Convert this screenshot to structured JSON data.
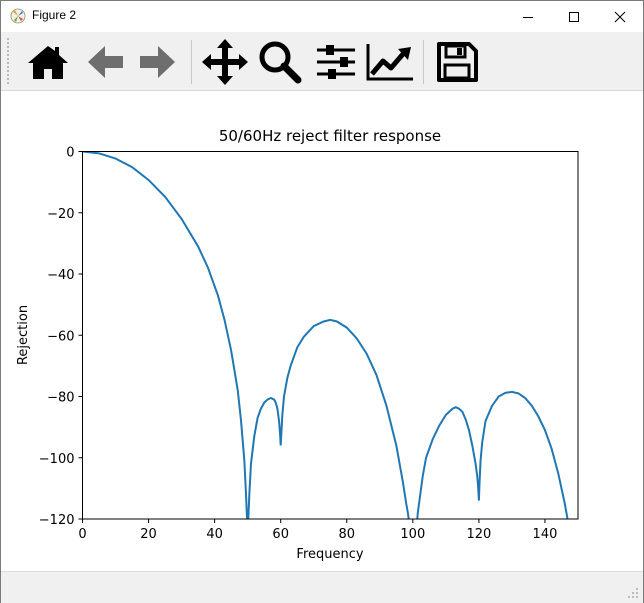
{
  "window": {
    "title": "Figure 2"
  },
  "toolbar": {
    "buttons": [
      "home-icon",
      "back-arrow-icon",
      "forward-arrow-icon",
      "pan-move-icon",
      "zoom-magnifier-icon",
      "configure-subplots-icon",
      "edit-axis-icon",
      "save-floppy-icon"
    ]
  },
  "chart_data": {
    "type": "line",
    "title": "50/60Hz reject filter response",
    "xlabel": "Frequency",
    "ylabel": "Rejection",
    "xlim": [
      0,
      150
    ],
    "ylim": [
      -120,
      0
    ],
    "xticks": [
      "0",
      "20",
      "40",
      "60",
      "80",
      "100",
      "120",
      "140"
    ],
    "yticks": [
      "0",
      "−20",
      "−40",
      "−60",
      "−80",
      "−100",
      "−120"
    ],
    "line_color": "#1f77b4",
    "grid": false,
    "series": [
      {
        "x": [
          0,
          5,
          10,
          15,
          20,
          25,
          30,
          35,
          38,
          41,
          43,
          45,
          47,
          48,
          49,
          49.5,
          50,
          50.5,
          51,
          52,
          53,
          54,
          55,
          56,
          57,
          58,
          58.5,
          59,
          59.5,
          59.8,
          60,
          60.2,
          60.5,
          61,
          62,
          63,
          65,
          67,
          70,
          73,
          75,
          77,
          80,
          83,
          86,
          89,
          92,
          95,
          97,
          98,
          98.5,
          99,
          101,
          101.5,
          102,
          103,
          104,
          106,
          108,
          110,
          112,
          113,
          114,
          115,
          116,
          117,
          118,
          119,
          119.5,
          119.8,
          120,
          120.2,
          120.5,
          121,
          122,
          124,
          126,
          128,
          130,
          132,
          134,
          136,
          138,
          140,
          142,
          144,
          145,
          146,
          147,
          147.5
        ],
        "y": [
          0,
          -0.6,
          -2.3,
          -5.1,
          -9.3,
          -14.8,
          -22,
          -31,
          -38,
          -47,
          -55,
          -65,
          -78,
          -88,
          -101,
          -112,
          -125,
          -112,
          -102,
          -93,
          -87,
          -84,
          -82,
          -81,
          -80.5,
          -81,
          -82,
          -84,
          -88,
          -92,
          -96,
          -92,
          -86,
          -80,
          -74,
          -70,
          -64,
          -60.5,
          -57,
          -55.5,
          -55,
          -55.5,
          -57.5,
          -61,
          -66,
          -73,
          -83,
          -96,
          -108,
          -115,
          -118,
          -122,
          -125,
          -118,
          -114,
          -106,
          -100,
          -94,
          -89.5,
          -86,
          -84,
          -83.5,
          -84,
          -85,
          -87.5,
          -91,
          -96,
          -102,
          -106,
          -110,
          -114,
          -108,
          -101,
          -95,
          -88,
          -83,
          -80,
          -78.8,
          -78.5,
          -79,
          -80.5,
          -83,
          -86.5,
          -91,
          -97,
          -105,
          -110,
          -115,
          -121,
          -125
        ]
      }
    ]
  }
}
